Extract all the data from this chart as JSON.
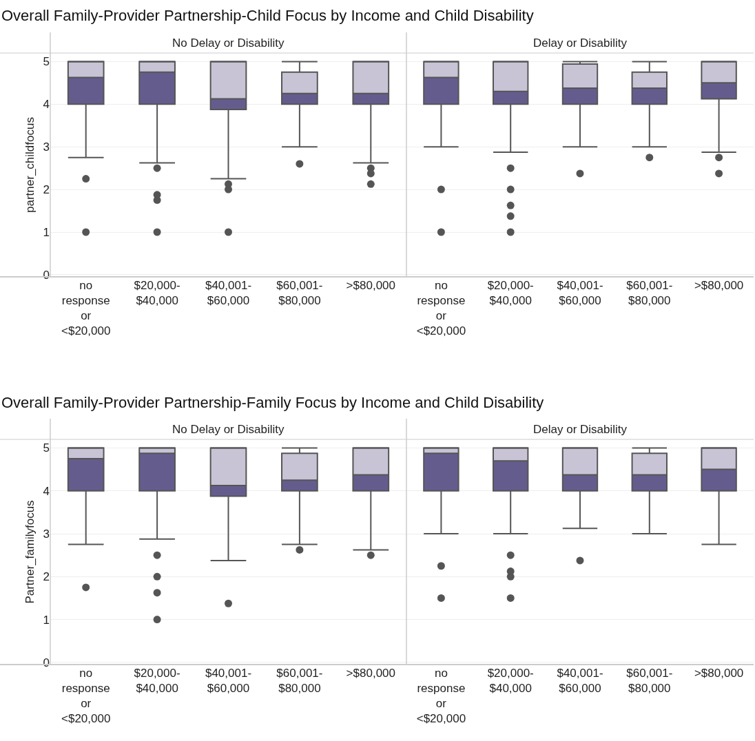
{
  "chart_data": [
    {
      "type": "box",
      "title": "Overall Family-Provider Partnership-Child Focus by Income and Child Disability",
      "subtitle": "No Delay or Disability",
      "ylabel": "partner_childfocus",
      "categories": [
        "no response or <$20,000",
        "$20,000-$40,000",
        "$40,001-$60,000",
        "$60,001-$80,000",
        ">$80,000"
      ],
      "series": [
        {
          "color": "#655c8e",
          "boxes": [
            {
              "low": 2.75,
              "q1": 4,
              "median": 4.625,
              "q3": 5,
              "high": 5,
              "outliers": [
                2.25,
                1
              ]
            },
            {
              "low": 2.625,
              "q1": 4,
              "median": 4.75,
              "q3": 5,
              "high": 5,
              "outliers": [
                2.5,
                1.875,
                1.75,
                1
              ]
            },
            {
              "low": 2.25,
              "q1": 3.875,
              "median": 4.125,
              "q3": 5,
              "high": 5,
              "outliers": [
                2.125,
                2,
                1
              ]
            },
            {
              "low": 3,
              "q1": 4,
              "median": 4.25,
              "q3": 4.75,
              "high": 5,
              "outliers": [
                2.6
              ]
            },
            {
              "low": 2.625,
              "q1": 4,
              "median": 4.25,
              "q3": 5,
              "high": 5,
              "outliers": [
                2.5,
                2.375,
                2.125
              ]
            }
          ]
        }
      ],
      "ylim": [
        -0.05,
        5.2
      ],
      "yticks": [
        0,
        1,
        2,
        3,
        4,
        5
      ],
      "grid": "y",
      "marker": "circle"
    },
    {
      "type": "box",
      "subtitle": "Delay or Disability",
      "categories": [
        "no response or <$20,000",
        "$20,000-$40,000",
        "$40,001-$60,000",
        "$60,001-$80,000",
        ">$80,000"
      ],
      "series": [
        {
          "color": "#655c8e",
          "boxes": [
            {
              "low": 3,
              "q1": 4,
              "median": 4.625,
              "q3": 5,
              "high": 5,
              "outliers": [
                2,
                1
              ]
            },
            {
              "low": 2.875,
              "q1": 4,
              "median": 4.3,
              "q3": 5,
              "high": 5,
              "outliers": [
                2.5,
                2,
                1.625,
                1.375,
                1
              ]
            },
            {
              "low": 3,
              "q1": 4,
              "median": 4.375,
              "q3": 4.94,
              "high": 5,
              "outliers": [
                2.375
              ]
            },
            {
              "low": 3,
              "q1": 4,
              "median": 4.375,
              "q3": 4.75,
              "high": 5,
              "outliers": [
                2.75
              ]
            },
            {
              "low": 2.875,
              "q1": 4.125,
              "median": 4.5,
              "q3": 5,
              "high": 5,
              "outliers": [
                2.75,
                2.375
              ]
            }
          ]
        }
      ],
      "ylim": [
        -0.05,
        5.2
      ],
      "yticks": [
        0,
        1,
        2,
        3,
        4,
        5
      ],
      "grid": "y",
      "marker": "circle",
      "tick_labels": "x"
    },
    {
      "type": "box",
      "title": "Overall Family-Provider Partnership-Family Focus by Income and Child Disability",
      "subtitle": "No Delay or Disability",
      "ylabel": "Partner_familyfocus",
      "categories": [
        "no response or <$20,000",
        "$20,000-$40,000",
        "$40,001-$60,000",
        "$60,001-$80,000",
        ">$80,000"
      ],
      "series": [
        {
          "color": "#655c8e",
          "boxes": [
            {
              "low": 2.75,
              "q1": 4,
              "median": 4.75,
              "q3": 5,
              "high": 5,
              "outliers": [
                1.75
              ]
            },
            {
              "low": 2.875,
              "q1": 4,
              "median": 4.875,
              "q3": 5,
              "high": 5,
              "outliers": [
                2.5,
                2,
                1.625,
                1
              ]
            },
            {
              "low": 2.375,
              "q1": 3.875,
              "median": 4.125,
              "q3": 5,
              "high": 5,
              "outliers": [
                1.375
              ]
            },
            {
              "low": 2.75,
              "q1": 4,
              "median": 4.25,
              "q3": 4.875,
              "high": 5,
              "outliers": [
                2.625
              ]
            },
            {
              "low": 2.625,
              "q1": 4,
              "median": 4.375,
              "q3": 5,
              "high": 5,
              "outliers": [
                2.5
              ]
            }
          ]
        }
      ],
      "ylim": [
        -0.05,
        5.2
      ],
      "yticks": [
        0,
        1,
        2,
        3,
        4,
        5
      ],
      "grid": "y",
      "marker": "circle"
    },
    {
      "type": "box",
      "subtitle": "Delay or Disability",
      "categories": [
        "no response or <$20,000",
        "$20,000-$40,000",
        "$40,001-$60,000",
        "$60,001-$80,000",
        ">$80,000"
      ],
      "series": [
        {
          "color": "#655c8e",
          "boxes": [
            {
              "low": 3,
              "q1": 4,
              "median": 4.875,
              "q3": 5,
              "high": 5,
              "outliers": [
                2.25,
                1.5
              ]
            },
            {
              "low": 3,
              "q1": 4,
              "median": 4.7,
              "q3": 5,
              "high": 5,
              "outliers": [
                2.5,
                2.125,
                2,
                1.5
              ]
            },
            {
              "low": 3.125,
              "q1": 4,
              "median": 4.375,
              "q3": 5,
              "high": 5,
              "outliers": [
                2.375
              ]
            },
            {
              "low": 3,
              "q1": 4,
              "median": 4.375,
              "q3": 4.875,
              "high": 5
            },
            {
              "low": 2.75,
              "q1": 4,
              "median": 4.5,
              "q3": 5,
              "high": 5
            }
          ]
        }
      ],
      "ylim": [
        -0.05,
        5.2
      ],
      "yticks": [
        0,
        1,
        2,
        3,
        4,
        5
      ],
      "grid": "y",
      "marker": "circle",
      "tick_labels": "x"
    }
  ]
}
